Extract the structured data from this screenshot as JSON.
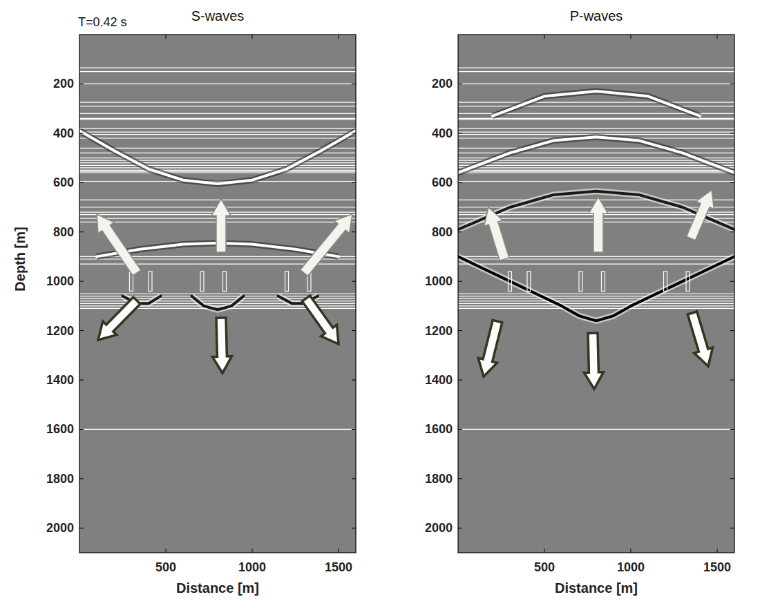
{
  "chart_data": [
    {
      "type": "image",
      "title": "S-waves",
      "annotation": "T=0.42 s",
      "x_label": "Distance [m]",
      "y_label": "Depth [m]",
      "xlim": [
        0,
        1600
      ],
      "ylim": [
        0,
        2100
      ],
      "xticks": [
        500,
        1000,
        1500
      ],
      "yticks": [
        200,
        400,
        600,
        800,
        1000,
        1200,
        1400,
        1600,
        1800,
        2000
      ],
      "interfaces": [
        135,
        150,
        200,
        275,
        290,
        320,
        340,
        345,
        380,
        395,
        405,
        420,
        460,
        480,
        500,
        510,
        520,
        530,
        540,
        550,
        555,
        560,
        595,
        670,
        700,
        720,
        730,
        745,
        760,
        900,
        910,
        930,
        1050,
        1060,
        1070,
        1080,
        1090,
        1100,
        1110,
        1600
      ],
      "zones": [
        {
          "x0": 290,
          "x1": 310,
          "top": 960,
          "bottom": 1040
        },
        {
          "x0": 400,
          "x1": 420,
          "top": 960,
          "bottom": 1040
        },
        {
          "x0": 700,
          "x1": 720,
          "top": 960,
          "bottom": 1040
        },
        {
          "x0": 830,
          "x1": 850,
          "top": 960,
          "bottom": 1040
        },
        {
          "x0": 1190,
          "x1": 1210,
          "top": 960,
          "bottom": 1040
        },
        {
          "x0": 1320,
          "x1": 1340,
          "top": 960,
          "bottom": 1040
        }
      ],
      "series": [
        {
          "color": "#ffffff",
          "x": [
            0,
            200,
            400,
            600,
            800,
            1000,
            1200,
            1400,
            1600
          ],
          "values": [
            390,
            470,
            545,
            590,
            605,
            590,
            545,
            470,
            390
          ]
        },
        {
          "color": "#ffffff",
          "x": [
            100,
            350,
            600,
            800,
            1000,
            1250,
            1500
          ],
          "values": [
            900,
            870,
            850,
            845,
            850,
            870,
            900
          ]
        },
        {
          "color": "#1a1a1a",
          "x": [
            650,
            720,
            800,
            880,
            950
          ],
          "values": [
            1060,
            1100,
            1115,
            1100,
            1060
          ]
        },
        {
          "color": "#1a1a1a",
          "x": [
            250,
            330,
            400,
            470
          ],
          "values": [
            1060,
            1090,
            1090,
            1060
          ]
        },
        {
          "color": "#1a1a1a",
          "x": [
            1150,
            1230,
            1300,
            1380
          ],
          "values": [
            1060,
            1090,
            1090,
            1060
          ]
        }
      ]
    },
    {
      "type": "image",
      "title": "P-waves",
      "x_label": "Distance [m]",
      "xlim": [
        0,
        1600
      ],
      "ylim": [
        0,
        2100
      ],
      "xticks": [
        500,
        1000,
        1500
      ],
      "yticks": [
        200,
        400,
        600,
        800,
        1000,
        1200,
        1400,
        1600,
        1800,
        2000
      ],
      "interfaces": [
        135,
        150,
        200,
        275,
        290,
        320,
        340,
        345,
        380,
        395,
        405,
        420,
        460,
        480,
        500,
        510,
        520,
        530,
        540,
        550,
        555,
        560,
        595,
        670,
        700,
        720,
        730,
        745,
        760,
        900,
        910,
        930,
        1050,
        1060,
        1070,
        1080,
        1090,
        1100,
        1110,
        1600
      ],
      "zones": [
        {
          "x0": 290,
          "x1": 310,
          "top": 960,
          "bottom": 1040
        },
        {
          "x0": 400,
          "x1": 420,
          "top": 960,
          "bottom": 1040
        },
        {
          "x0": 700,
          "x1": 720,
          "top": 960,
          "bottom": 1040
        },
        {
          "x0": 830,
          "x1": 850,
          "top": 960,
          "bottom": 1040
        },
        {
          "x0": 1190,
          "x1": 1210,
          "top": 960,
          "bottom": 1040
        },
        {
          "x0": 1320,
          "x1": 1340,
          "top": 960,
          "bottom": 1040
        }
      ],
      "series": [
        {
          "color": "#000000",
          "x": [
            0,
            150,
            300,
            450,
            600,
            700,
            800,
            900,
            1000,
            1150,
            1300,
            1450,
            1600
          ],
          "values": [
            900,
            950,
            1000,
            1050,
            1100,
            1140,
            1160,
            1140,
            1100,
            1050,
            1000,
            950,
            900
          ]
        },
        {
          "color": "#ffffff",
          "x": [
            200,
            500,
            800,
            1100,
            1400
          ],
          "values": [
            330,
            250,
            230,
            250,
            330
          ]
        },
        {
          "color": "#ffffff",
          "x": [
            0,
            300,
            550,
            800,
            1050,
            1300,
            1600
          ],
          "values": [
            560,
            480,
            430,
            415,
            430,
            480,
            560
          ]
        },
        {
          "color": "#1a1a1a",
          "x": [
            0,
            300,
            550,
            800,
            1050,
            1300,
            1600
          ],
          "values": [
            790,
            700,
            650,
            635,
            650,
            700,
            790
          ]
        }
      ]
    }
  ]
}
